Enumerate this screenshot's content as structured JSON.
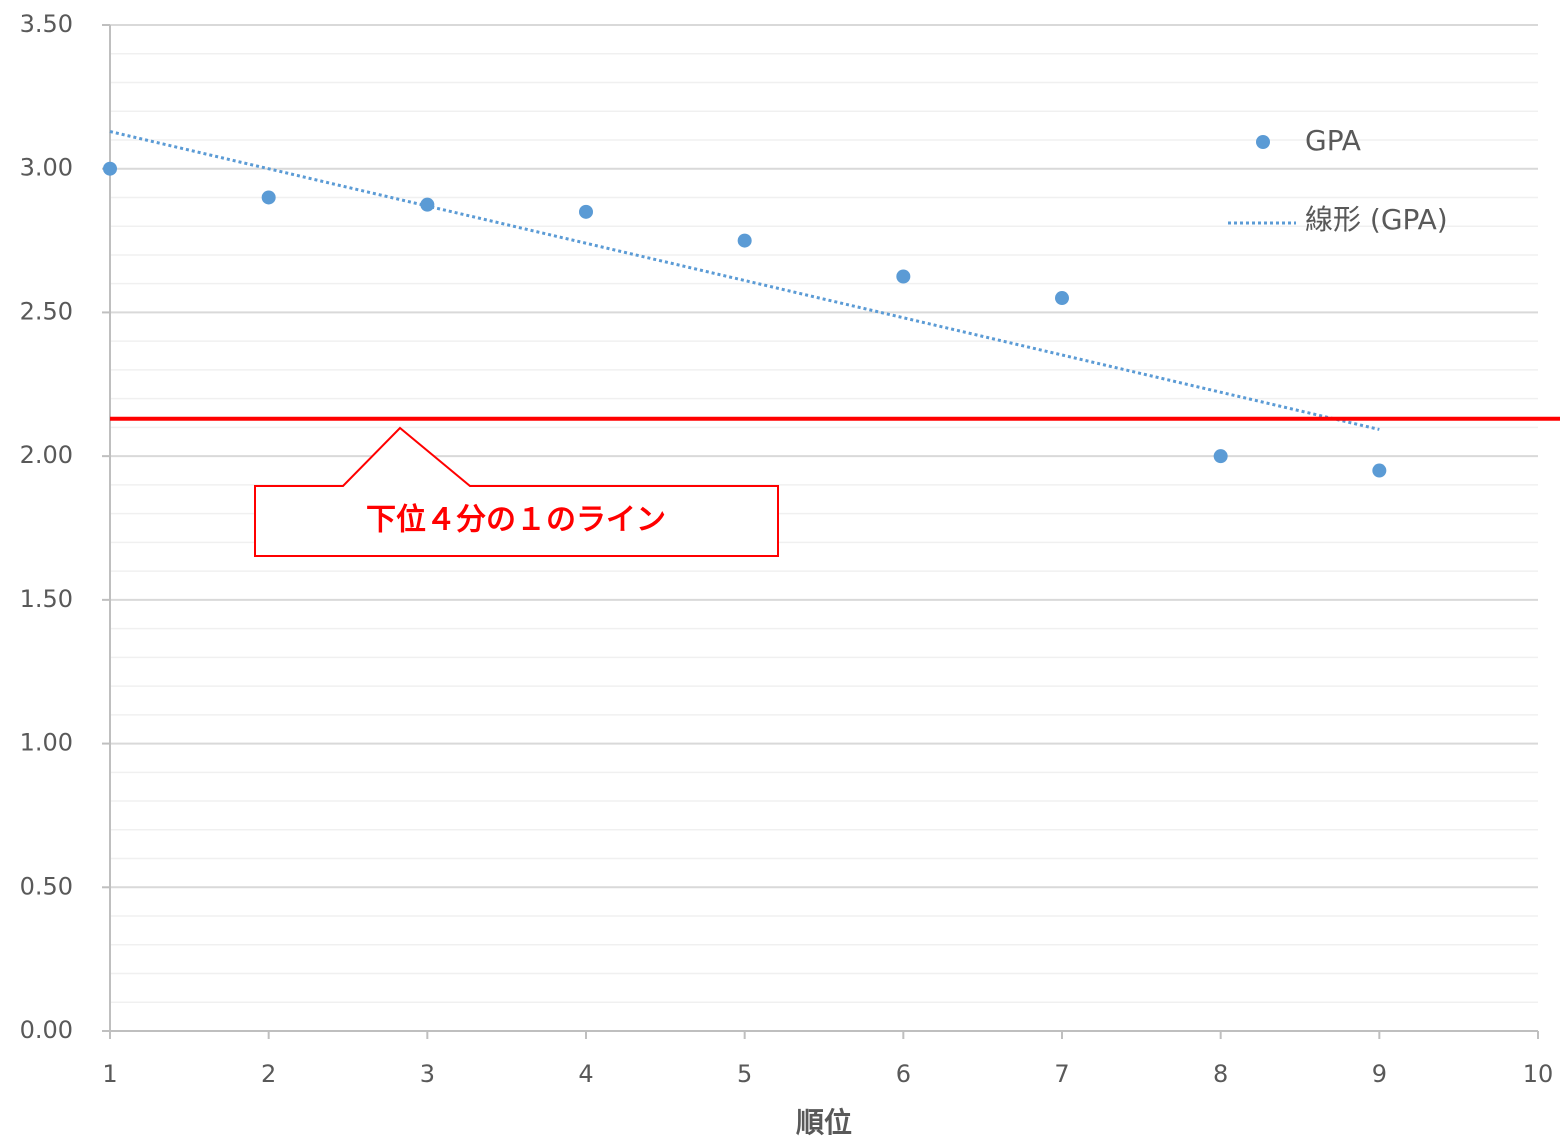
{
  "chart_data": {
    "type": "scatter",
    "x_label": "順位",
    "x": [
      1,
      2,
      3,
      4,
      5,
      6,
      7,
      8,
      9
    ],
    "series": [
      {
        "name": "GPA",
        "color": "#5b9bd5",
        "values": [
          3.0,
          2.9,
          2.875,
          2.85,
          2.75,
          2.625,
          2.55,
          2.0,
          1.95
        ]
      }
    ],
    "trendline": {
      "name": "線形 (GPA)",
      "type": "linear",
      "color": "#5b9bd5",
      "style": "dotted"
    },
    "reference_line": {
      "value": 2.13,
      "color": "#ff0000",
      "label": "下位４分の１のライン"
    },
    "xlim": [
      1,
      10
    ],
    "xticks": [
      1,
      2,
      3,
      4,
      5,
      6,
      7,
      8,
      9,
      10
    ],
    "ylim": [
      0,
      3.5
    ],
    "yticks": [
      {
        "value": 0,
        "label": "0.00"
      },
      {
        "value": 0.5,
        "label": "0.50"
      },
      {
        "value": 1,
        "label": "1.00"
      },
      {
        "value": 1.5,
        "label": "1.50"
      },
      {
        "value": 2,
        "label": "2.00"
      },
      {
        "value": 2.5,
        "label": "2.50"
      },
      {
        "value": 3,
        "label": "3.00"
      },
      {
        "value": 3.5,
        "label": "3.50"
      }
    ],
    "grid": true,
    "minor_grid": 5,
    "legend": "right"
  }
}
